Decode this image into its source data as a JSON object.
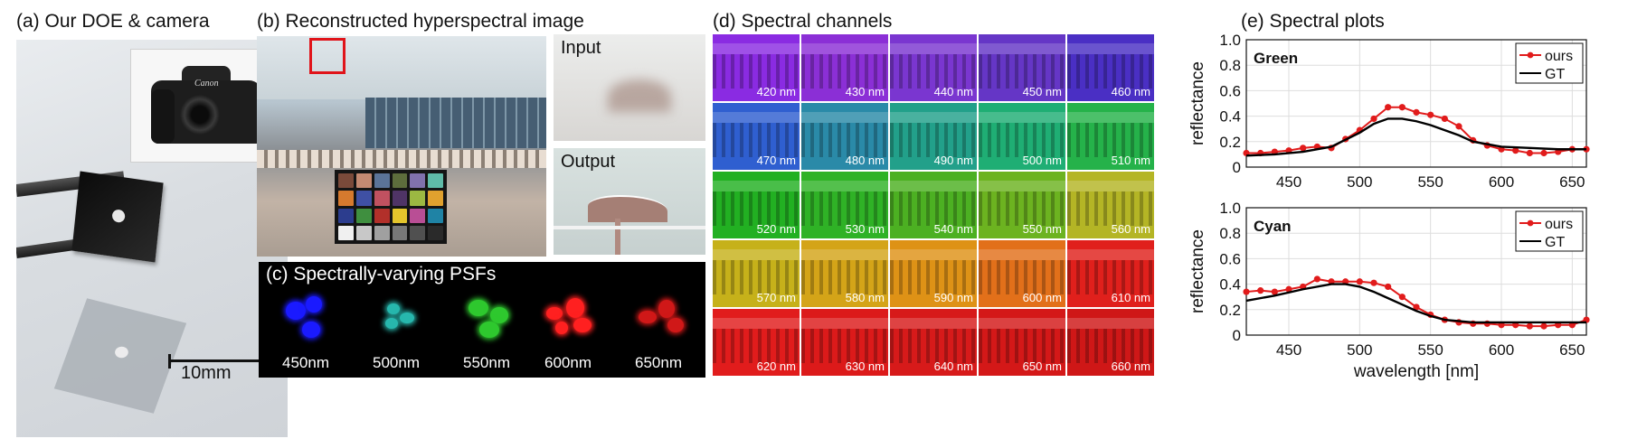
{
  "panel_a": {
    "title": "(a) Our DOE & camera",
    "scale_label": "10mm",
    "camera_brand": "Canon"
  },
  "panel_b": {
    "title": "(b) Reconstructed hyperspectral image",
    "input_label": "Input",
    "output_label": "Output"
  },
  "panel_c": {
    "title": "(c) Spectrally-varying PSFs",
    "psfs": [
      {
        "label": "450nm",
        "color": "#1a1aff"
      },
      {
        "label": "500nm",
        "color": "#27b7ad"
      },
      {
        "label": "550nm",
        "color": "#2ec82e"
      },
      {
        "label": "600nm",
        "color": "#ff2020"
      },
      {
        "label": "650nm",
        "color": "#d01818"
      }
    ]
  },
  "panel_d": {
    "title": "(d) Spectral channels",
    "channels": [
      {
        "label": "420 nm",
        "color": "#8a2be2"
      },
      {
        "label": "430 nm",
        "color": "#8b2fd6"
      },
      {
        "label": "440 nm",
        "color": "#7a36d0"
      },
      {
        "label": "450 nm",
        "color": "#6536c6"
      },
      {
        "label": "460 nm",
        "color": "#4a2fc4"
      },
      {
        "label": "470 nm",
        "color": "#2f5fd0"
      },
      {
        "label": "480 nm",
        "color": "#2a8aa8"
      },
      {
        "label": "490 nm",
        "color": "#22a08a"
      },
      {
        "label": "500 nm",
        "color": "#1fae74"
      },
      {
        "label": "510 nm",
        "color": "#25b24a"
      },
      {
        "label": "520 nm",
        "color": "#22b022"
      },
      {
        "label": "530 nm",
        "color": "#2fb226"
      },
      {
        "label": "540 nm",
        "color": "#4cb022"
      },
      {
        "label": "550 nm",
        "color": "#6cb320"
      },
      {
        "label": "560 nm",
        "color": "#b4b525"
      },
      {
        "label": "570 nm",
        "color": "#c6b11a"
      },
      {
        "label": "580 nm",
        "color": "#d4a418"
      },
      {
        "label": "590 nm",
        "color": "#de9216"
      },
      {
        "label": "600 nm",
        "color": "#e2701a"
      },
      {
        "label": "610 nm",
        "color": "#e0201c"
      },
      {
        "label": "620 nm",
        "color": "#e11c1c"
      },
      {
        "label": "630 nm",
        "color": "#dc1a1a"
      },
      {
        "label": "640 nm",
        "color": "#d71a1a"
      },
      {
        "label": "650 nm",
        "color": "#d41818"
      },
      {
        "label": "660 nm",
        "color": "#cf1717"
      }
    ]
  },
  "panel_e": {
    "title": "(e) Spectral plots"
  },
  "chart_data": [
    {
      "type": "line",
      "title": "Green",
      "xlabel": "",
      "ylabel": "reflectance",
      "xlim": [
        420,
        660
      ],
      "ylim": [
        0,
        1.0
      ],
      "xticks": [
        450,
        500,
        550,
        600,
        650
      ],
      "yticks": [
        0,
        0.2,
        0.4,
        0.6,
        0.8,
        1.0
      ],
      "grid": true,
      "legend": "top-right",
      "series": [
        {
          "name": "ours",
          "color": "#e11b1b",
          "marker": true,
          "x": [
            420,
            430,
            440,
            450,
            460,
            470,
            480,
            490,
            500,
            510,
            520,
            530,
            540,
            550,
            560,
            570,
            580,
            590,
            600,
            610,
            620,
            630,
            640,
            650,
            660
          ],
          "y": [
            0.11,
            0.11,
            0.12,
            0.13,
            0.15,
            0.16,
            0.15,
            0.22,
            0.29,
            0.38,
            0.47,
            0.47,
            0.43,
            0.41,
            0.38,
            0.32,
            0.21,
            0.17,
            0.14,
            0.13,
            0.11,
            0.11,
            0.12,
            0.14,
            0.14
          ]
        },
        {
          "name": "GT",
          "color": "#000000",
          "marker": false,
          "x": [
            420,
            440,
            460,
            480,
            500,
            510,
            520,
            530,
            540,
            550,
            560,
            570,
            580,
            600,
            620,
            640,
            660
          ],
          "y": [
            0.09,
            0.1,
            0.12,
            0.16,
            0.27,
            0.34,
            0.38,
            0.38,
            0.36,
            0.33,
            0.29,
            0.25,
            0.2,
            0.16,
            0.15,
            0.14,
            0.14
          ]
        }
      ]
    },
    {
      "type": "line",
      "title": "Cyan",
      "xlabel": "wavelength [nm]",
      "ylabel": "reflectance",
      "xlim": [
        420,
        660
      ],
      "ylim": [
        0,
        1.0
      ],
      "xticks": [
        450,
        500,
        550,
        600,
        650
      ],
      "yticks": [
        0,
        0.2,
        0.4,
        0.6,
        0.8,
        1.0
      ],
      "grid": true,
      "legend": "top-right",
      "series": [
        {
          "name": "ours",
          "color": "#e11b1b",
          "marker": true,
          "x": [
            420,
            430,
            440,
            450,
            460,
            470,
            480,
            490,
            500,
            510,
            520,
            530,
            540,
            550,
            560,
            570,
            580,
            590,
            600,
            610,
            620,
            630,
            640,
            650,
            660
          ],
          "y": [
            0.34,
            0.35,
            0.34,
            0.36,
            0.38,
            0.44,
            0.42,
            0.42,
            0.42,
            0.41,
            0.38,
            0.3,
            0.22,
            0.16,
            0.12,
            0.1,
            0.09,
            0.09,
            0.08,
            0.08,
            0.07,
            0.07,
            0.08,
            0.08,
            0.12
          ]
        },
        {
          "name": "GT",
          "color": "#000000",
          "marker": false,
          "x": [
            420,
            440,
            460,
            480,
            490,
            500,
            510,
            520,
            530,
            540,
            550,
            560,
            580,
            600,
            620,
            640,
            660
          ],
          "y": [
            0.27,
            0.31,
            0.36,
            0.4,
            0.4,
            0.38,
            0.34,
            0.29,
            0.24,
            0.19,
            0.15,
            0.12,
            0.1,
            0.1,
            0.1,
            0.1,
            0.1
          ]
        }
      ]
    }
  ]
}
